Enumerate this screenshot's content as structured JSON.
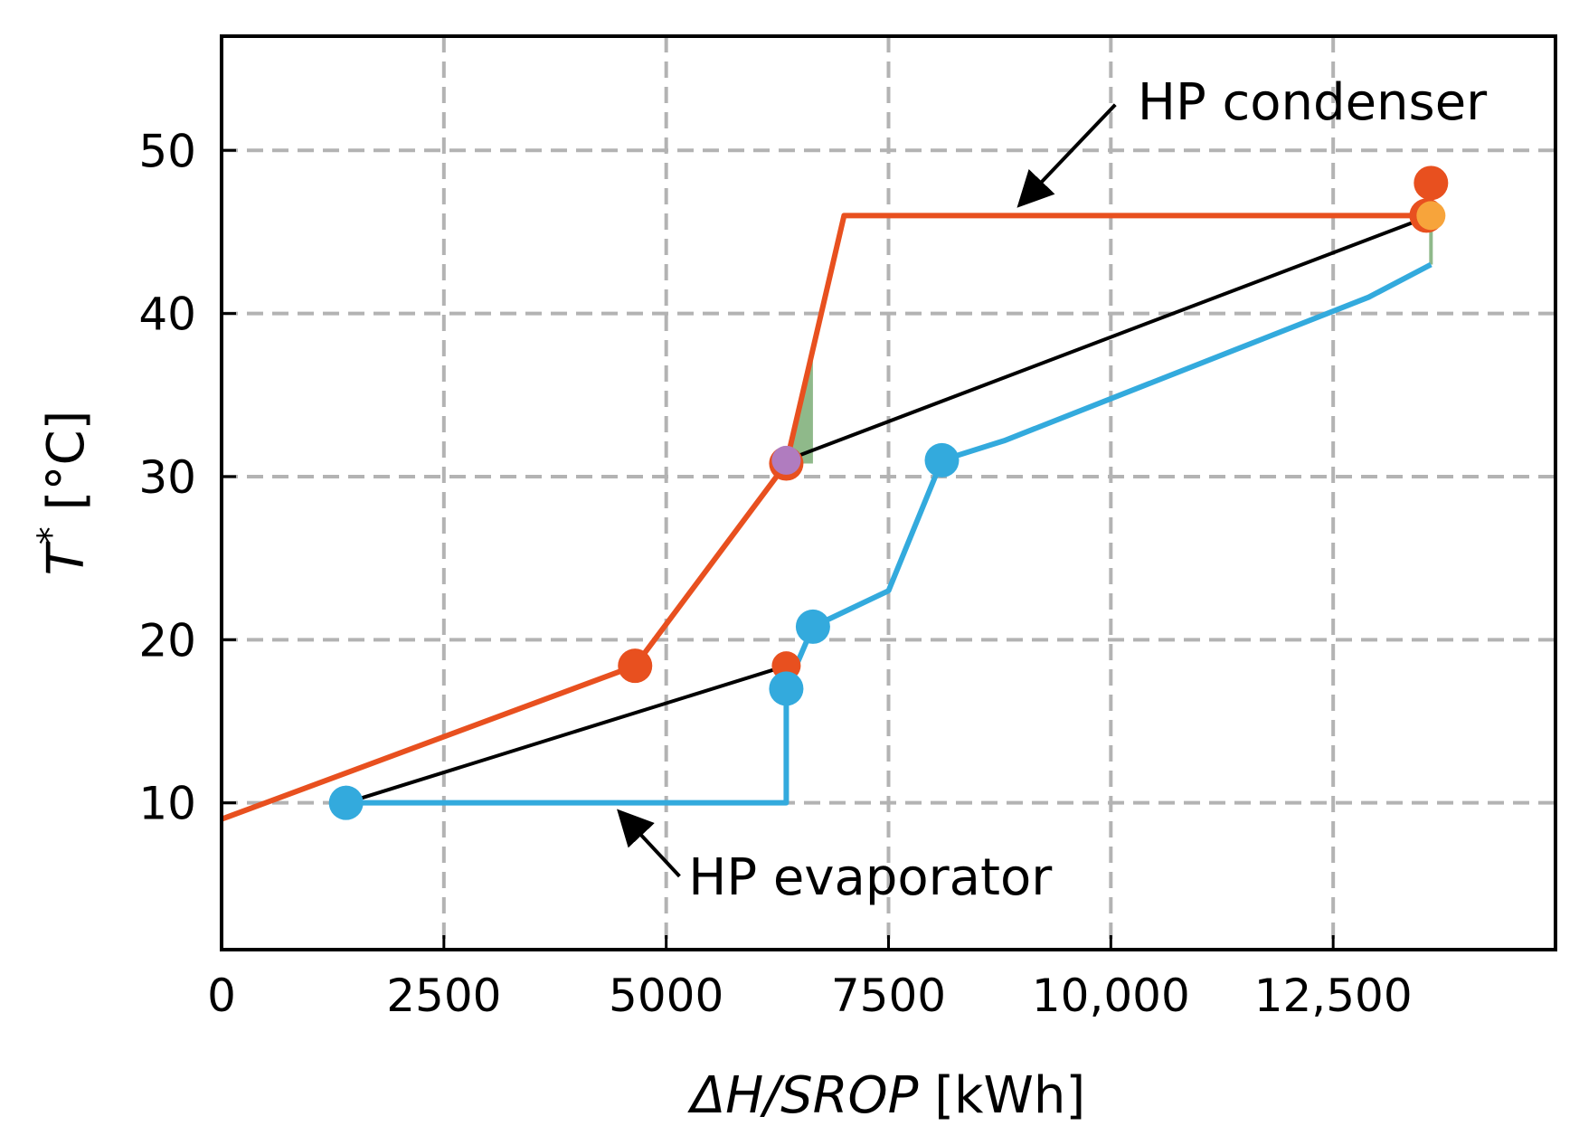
{
  "chart_data": {
    "type": "line",
    "title": "",
    "xlabel": {
      "italic": "ΔH/SROP",
      "unit": " [kWh]"
    },
    "ylabel": {
      "italic": "T",
      "sup": "*",
      "unit": " [°C]"
    },
    "xlim": [
      0,
      15000
    ],
    "ylim": [
      1,
      57
    ],
    "xticks": [
      0,
      2500,
      5000,
      7500,
      10000,
      12500
    ],
    "xtick_labels": [
      "0",
      "2500",
      "5000",
      "7500",
      "10,000",
      "12,500"
    ],
    "yticks": [
      10,
      20,
      30,
      40,
      50
    ],
    "ytick_labels": [
      "10",
      "20",
      "30",
      "40",
      "50"
    ],
    "grid": true,
    "series": [
      {
        "name": "HP condenser",
        "color": "#e8501f",
        "points": [
          [
            0,
            9.0
          ],
          [
            4650,
            18.4
          ],
          [
            6350,
            30.8
          ],
          [
            7000,
            46.0
          ],
          [
            13600,
            46.0
          ]
        ]
      },
      {
        "name": "HP evaporator",
        "color": "#33aadd",
        "points": [
          [
            1400,
            10.0
          ],
          [
            6350,
            10.0
          ],
          [
            6350,
            17.0
          ],
          [
            6650,
            20.8
          ],
          [
            7500,
            23.0
          ],
          [
            8100,
            31.0
          ],
          [
            8800,
            32.2
          ],
          [
            12900,
            41.0
          ],
          [
            13600,
            43.0
          ]
        ]
      },
      {
        "name": "black lower",
        "color": "#000000",
        "points": [
          [
            1400,
            10.0
          ],
          [
            6350,
            18.4
          ]
        ]
      },
      {
        "name": "black upper",
        "color": "#000000",
        "points": [
          [
            6350,
            31.0
          ],
          [
            13600,
            46.0
          ]
        ]
      }
    ],
    "shaded_region": {
      "color": "#8fb98a",
      "points": [
        [
          6350,
          31.0
        ],
        [
          6650,
          38.0
        ],
        [
          6650,
          30.8
        ],
        [
          6350,
          30.8
        ]
      ]
    },
    "green_segments": [
      {
        "color": "#8fb98a",
        "points": [
          [
            13600,
            43.0
          ],
          [
            13600,
            46.0
          ]
        ]
      }
    ],
    "markers": [
      {
        "x": 13600,
        "y": 48.0,
        "color": "#e8501f",
        "size": "large"
      },
      {
        "x": 13550,
        "y": 46.0,
        "color": "#e8501f",
        "size": "large"
      },
      {
        "x": 13600,
        "y": 46.0,
        "color": "#f7a43b",
        "size": "medium"
      },
      {
        "x": 6350,
        "y": 30.8,
        "color": "#e8501f",
        "size": "large"
      },
      {
        "x": 6350,
        "y": 31.0,
        "color": "#b07cbf",
        "size": "medium"
      },
      {
        "x": 4650,
        "y": 18.4,
        "color": "#e8501f",
        "size": "large"
      },
      {
        "x": 6350,
        "y": 18.4,
        "color": "#e8501f",
        "size": "medium"
      },
      {
        "x": 6350,
        "y": 17.0,
        "color": "#33aadd",
        "size": "large"
      },
      {
        "x": 6650,
        "y": 20.8,
        "color": "#33aadd",
        "size": "large"
      },
      {
        "x": 8100,
        "y": 31.0,
        "color": "#33aadd",
        "size": "large"
      },
      {
        "x": 1400,
        "y": 10.0,
        "color": "#33aadd",
        "size": "large"
      }
    ],
    "annotations": [
      {
        "text": "HP condenser",
        "text_at": [
          10300,
          53.0
        ],
        "arrow_from": [
          10050,
          52.8
        ],
        "arrow_to": [
          9000,
          46.8
        ]
      },
      {
        "text": "HP evaporator",
        "text_at": [
          5250,
          5.5
        ],
        "arrow_from": [
          5150,
          5.5
        ],
        "arrow_to": [
          4500,
          9.3
        ]
      }
    ]
  }
}
